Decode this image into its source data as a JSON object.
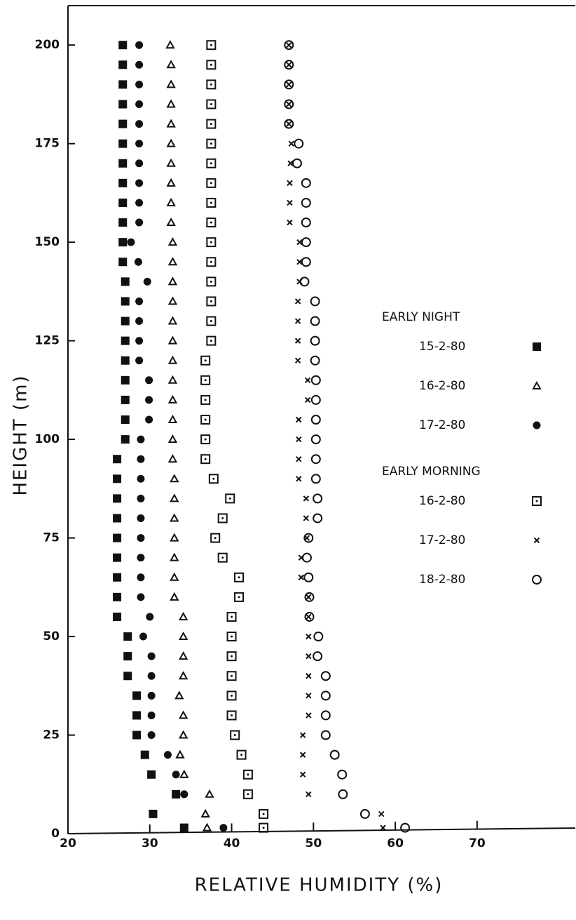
{
  "chart_data": {
    "type": "scatter",
    "x_label": "RELATIVE HUMIDITY (%)",
    "y_label": "HEIGHT (m)",
    "xlim": [
      20,
      82
    ],
    "ylim": [
      0,
      210
    ],
    "xticks": [
      20,
      30,
      40,
      50,
      60,
      70
    ],
    "yticks": [
      0,
      25,
      50,
      75,
      100,
      125,
      150,
      175,
      200
    ],
    "series": [
      {
        "name": "15-2-80",
        "group": "EARLY NIGHT",
        "marker": "filled-square",
        "color": "#111111",
        "x": [
          26.7,
          26.7,
          26.7,
          26.7,
          26.7,
          26.7,
          26.7,
          26.7,
          26.7,
          26.7,
          26.7,
          26.7,
          27,
          27,
          27,
          27,
          27,
          27,
          27,
          27,
          27,
          26,
          26,
          26,
          26,
          26,
          26,
          26,
          26,
          26,
          27.3,
          27.3,
          27.3,
          28.4,
          28.4,
          28.4,
          29.4,
          30.2,
          33.2,
          30.4,
          34.2
        ],
        "y": [
          200,
          195,
          190,
          185,
          180,
          175,
          170,
          165,
          160,
          155,
          150,
          145,
          140,
          135,
          130,
          125,
          120,
          115,
          110,
          105,
          100,
          95,
          90,
          85,
          80,
          75,
          70,
          65,
          60,
          55,
          50,
          45,
          40,
          35,
          30,
          25,
          20,
          15,
          10,
          5,
          1.5
        ]
      },
      {
        "name": "16-2-80",
        "group": "EARLY NIGHT",
        "marker": "triangle",
        "color": "#111111",
        "x": [
          32.5,
          32.6,
          32.6,
          32.6,
          32.6,
          32.6,
          32.6,
          32.6,
          32.6,
          32.6,
          32.8,
          32.8,
          32.8,
          32.8,
          32.8,
          32.8,
          32.8,
          32.8,
          32.8,
          32.8,
          32.8,
          32.8,
          33,
          33,
          33,
          33,
          33,
          33,
          33,
          34.1,
          34.1,
          34.1,
          34.1,
          33.6,
          34.1,
          34.1,
          33.7,
          34.2,
          37.3,
          36.8,
          37
        ],
        "y": [
          200,
          195,
          190,
          185,
          180,
          175,
          170,
          165,
          160,
          155,
          150,
          145,
          140,
          135,
          130,
          125,
          120,
          115,
          110,
          105,
          100,
          95,
          90,
          85,
          80,
          75,
          70,
          65,
          60,
          55,
          50,
          45,
          40,
          35,
          30,
          25,
          20,
          15,
          10,
          5,
          1.5
        ]
      },
      {
        "name": "17-2-80",
        "group": "EARLY NIGHT",
        "marker": "filled-circle",
        "color": "#111111",
        "x": [
          28.7,
          28.7,
          28.7,
          28.7,
          28.7,
          28.7,
          28.7,
          28.7,
          28.7,
          28.7,
          27.7,
          28.6,
          29.7,
          28.7,
          28.7,
          28.7,
          28.7,
          29.9,
          29.9,
          29.9,
          28.9,
          28.9,
          28.9,
          28.9,
          28.9,
          28.9,
          28.9,
          28.9,
          28.9,
          30,
          29.2,
          30.2,
          30.2,
          30.2,
          30.2,
          30.2,
          32.2,
          33.2,
          34.2,
          null,
          39
        ],
        "y": [
          200,
          195,
          190,
          185,
          180,
          175,
          170,
          165,
          160,
          155,
          150,
          145,
          140,
          135,
          130,
          125,
          120,
          115,
          110,
          105,
          100,
          95,
          90,
          85,
          80,
          75,
          70,
          65,
          60,
          55,
          50,
          45,
          40,
          35,
          30,
          25,
          20,
          15,
          10,
          5,
          1.5
        ]
      },
      {
        "name": "16-2-80",
        "group": "EARLY MORNING",
        "marker": "dotted-square",
        "color": "#111111",
        "x": [
          37.5,
          37.5,
          37.5,
          37.5,
          37.5,
          37.5,
          37.5,
          37.5,
          37.5,
          37.5,
          37.5,
          37.5,
          37.5,
          37.5,
          37.5,
          37.5,
          36.8,
          36.8,
          36.8,
          36.8,
          36.8,
          36.8,
          37.8,
          39.8,
          38.9,
          38,
          38.9,
          40.9,
          40.9,
          40,
          40,
          40,
          40,
          40,
          40,
          40.4,
          41.2,
          42,
          42,
          43.9,
          43.9
        ],
        "y": [
          200,
          195,
          190,
          185,
          180,
          175,
          170,
          165,
          160,
          155,
          150,
          145,
          140,
          135,
          130,
          125,
          120,
          115,
          110,
          105,
          100,
          95,
          90,
          85,
          80,
          75,
          70,
          65,
          60,
          55,
          50,
          45,
          40,
          35,
          30,
          25,
          20,
          15,
          10,
          5,
          1.5
        ]
      },
      {
        "name": "17-2-80",
        "group": "EARLY MORNING",
        "marker": "cross",
        "color": "#111111",
        "x": [
          47,
          47,
          47,
          47,
          47,
          47.3,
          47.2,
          47.1,
          47.1,
          47.1,
          48.3,
          48.3,
          48.3,
          48.1,
          48.1,
          48.1,
          48.1,
          49.3,
          49.3,
          48.2,
          48.2,
          48.2,
          48.2,
          49.1,
          49.1,
          49.2,
          48.5,
          48.5,
          49.4,
          49.4,
          49.4,
          49.4,
          49.4,
          49.4,
          49.4,
          48.7,
          48.7,
          48.7,
          49.4,
          58.3,
          58.5
        ],
        "y": [
          200,
          195,
          190,
          185,
          180,
          175,
          170,
          165,
          160,
          155,
          150,
          145,
          140,
          135,
          130,
          125,
          120,
          115,
          110,
          105,
          100,
          95,
          90,
          85,
          80,
          75,
          70,
          65,
          60,
          55,
          50,
          45,
          40,
          35,
          30,
          25,
          20,
          15,
          10,
          5,
          1.5
        ]
      },
      {
        "name": "18-2-80",
        "group": "EARLY MORNING",
        "marker": "circle",
        "color": "#111111",
        "x": [
          47,
          47,
          47,
          47,
          47,
          48.2,
          48,
          49.1,
          49.1,
          49.1,
          49.1,
          49.1,
          48.9,
          50.2,
          50.2,
          50.2,
          50.2,
          50.3,
          50.3,
          50.3,
          50.3,
          50.3,
          50.3,
          50.5,
          50.5,
          49.4,
          49.2,
          49.4,
          49.5,
          49.5,
          50.6,
          50.5,
          51.5,
          51.5,
          51.5,
          51.5,
          52.6,
          53.5,
          53.6,
          56.3,
          61.2
        ],
        "y": [
          200,
          195,
          190,
          185,
          180,
          175,
          170,
          165,
          160,
          155,
          150,
          145,
          140,
          135,
          130,
          125,
          120,
          115,
          110,
          105,
          100,
          95,
          90,
          85,
          80,
          75,
          70,
          65,
          60,
          55,
          50,
          45,
          40,
          35,
          30,
          25,
          20,
          15,
          10,
          5,
          1.5
        ]
      }
    ]
  }
}
